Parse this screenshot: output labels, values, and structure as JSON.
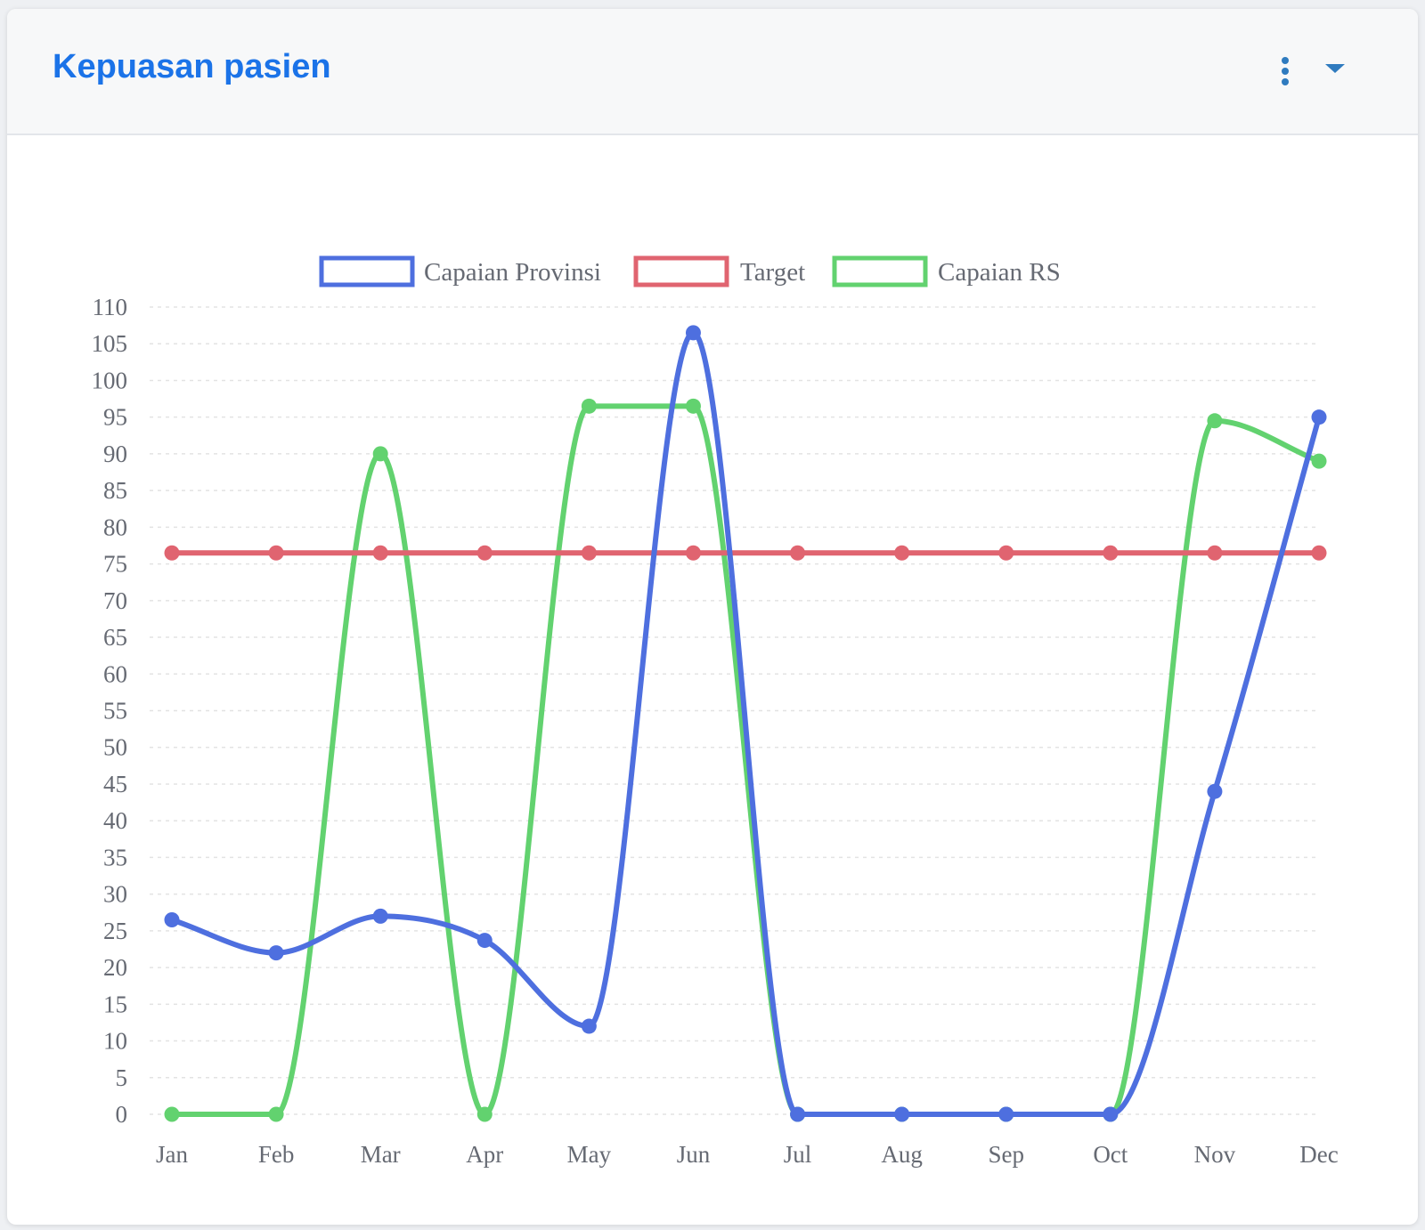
{
  "header": {
    "title": "Kepuasan pasien",
    "menu_icon": "vertical-dots-icon",
    "collapse_icon": "caret-down-icon"
  },
  "colors": {
    "title": "#1b73e8",
    "icons": "#2f7bbf",
    "capaian_provinsi": "#4e6fdf",
    "target": "#e06470",
    "capaian_rs": "#62d26f"
  },
  "chart_data": {
    "type": "line",
    "title": "",
    "xlabel": "",
    "ylabel": "",
    "categories": [
      "Jan",
      "Feb",
      "Mar",
      "Apr",
      "May",
      "Jun",
      "Jul",
      "Aug",
      "Sep",
      "Oct",
      "Nov",
      "Dec"
    ],
    "ylim": [
      0,
      110
    ],
    "ytick_step": 5,
    "grid": true,
    "legend_position": "top",
    "series": [
      {
        "name": "Capaian Provinsi",
        "color": "#4e6fdf",
        "values": [
          26.5,
          22,
          27,
          23.7,
          12,
          106.5,
          0,
          0,
          0,
          0,
          44,
          95
        ]
      },
      {
        "name": "Target",
        "color": "#e06470",
        "values": [
          76.5,
          76.5,
          76.5,
          76.5,
          76.5,
          76.5,
          76.5,
          76.5,
          76.5,
          76.5,
          76.5,
          76.5
        ]
      },
      {
        "name": "Capaian RS",
        "color": "#62d26f",
        "values": [
          0,
          0,
          90,
          0,
          96.5,
          96.5,
          0,
          0,
          0,
          0,
          94.5,
          89
        ]
      }
    ]
  }
}
